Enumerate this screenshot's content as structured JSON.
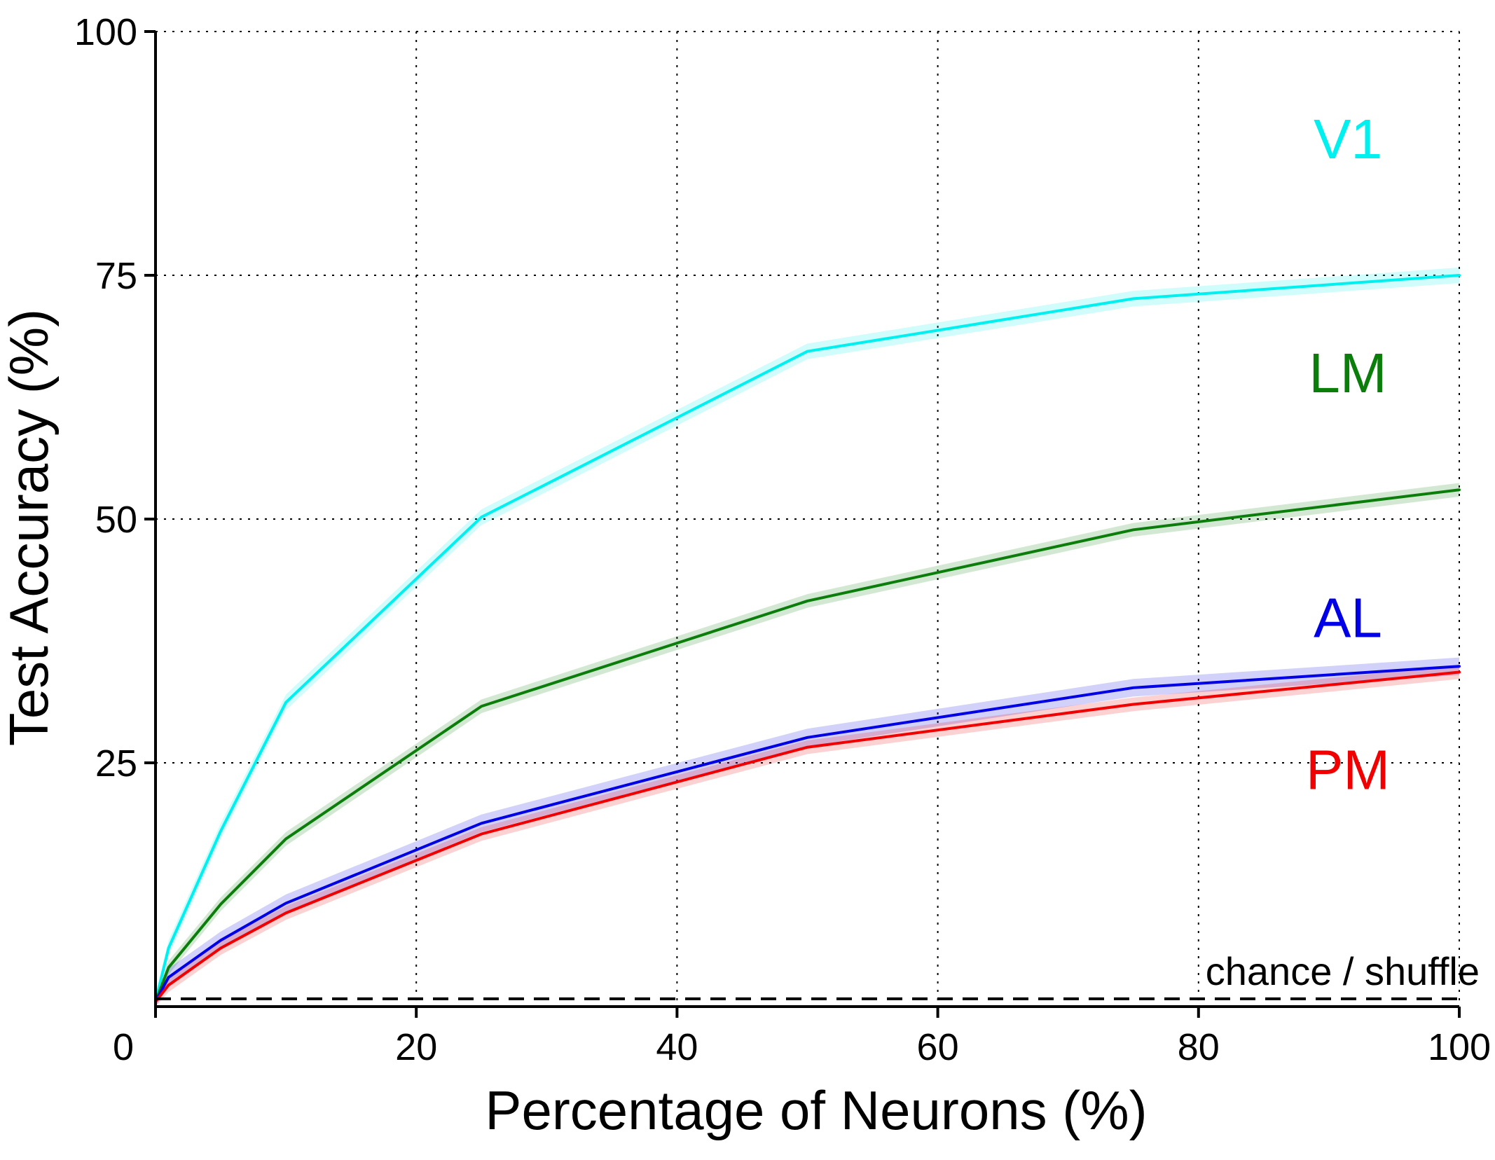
{
  "chart_data": {
    "type": "line",
    "title": "",
    "xlabel": "Percentage of Neurons (%)",
    "ylabel": "Test Accuracy (%)",
    "xlim": [
      0,
      100
    ],
    "ylim": [
      0,
      100
    ],
    "x_ticks": [
      0,
      20,
      40,
      60,
      80,
      100
    ],
    "y_ticks": [
      25,
      50,
      75,
      100
    ],
    "x_tick_labels": [
      "0",
      "20",
      "40",
      "60",
      "80",
      "100"
    ],
    "y_tick_labels": [
      "25",
      "50",
      "75",
      "100"
    ],
    "grid": true,
    "legend": "none (series labeled directly at right end of lines)",
    "x": [
      0,
      1,
      5,
      10,
      25,
      50,
      75,
      100
    ],
    "series": [
      {
        "name": "V1",
        "color": "#00f0f0",
        "values": [
          0.5,
          6,
          18,
          31.2,
          50.2,
          67.2,
          72.6,
          75.0
        ],
        "band": 0.8
      },
      {
        "name": "LM",
        "color": "#0b7d0b",
        "values": [
          0.5,
          4,
          10.5,
          17.2,
          30.8,
          41.6,
          48.9,
          53.0
        ],
        "band": 0.7
      },
      {
        "name": "AL",
        "color": "#0000e6",
        "values": [
          0.5,
          3,
          6.8,
          10.6,
          18.8,
          27.6,
          32.7,
          34.9
        ],
        "band": 0.9
      },
      {
        "name": "PM",
        "color": "#f00000",
        "values": [
          0.5,
          2.2,
          6.0,
          9.6,
          17.7,
          26.6,
          31.0,
          34.3
        ],
        "band": 0.7
      }
    ],
    "baseline": {
      "label": "chance / shuffle",
      "value": 0.8,
      "style": "dashed",
      "color": "#000000"
    }
  }
}
